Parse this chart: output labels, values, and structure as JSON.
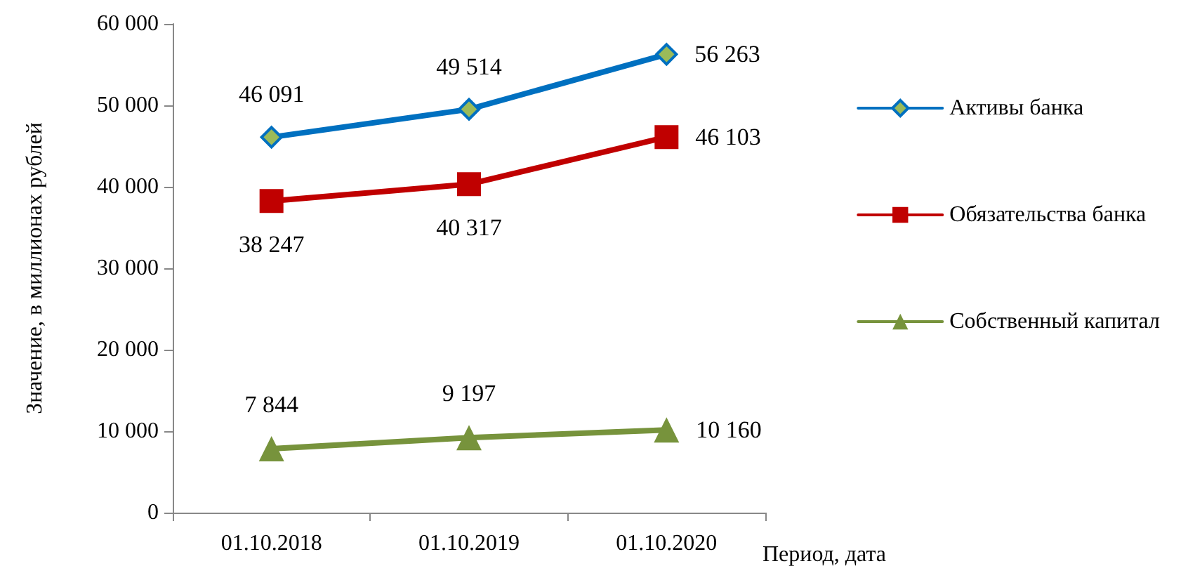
{
  "chart_data": {
    "type": "line",
    "xlabel": "Период, дата",
    "ylabel": "Значение, в миллионах рублей",
    "categories": [
      "01.10.2018",
      "01.10.2019",
      "01.10.2020"
    ],
    "series": [
      {
        "name": "Активы банка",
        "color": "#0070c0",
        "marker": "diamond",
        "values": [
          46091,
          49514,
          56263
        ],
        "value_labels": [
          "46 091",
          "49 514",
          "56 263"
        ]
      },
      {
        "name": "Обязательства банка",
        "color": "#c00000",
        "marker": "square",
        "values": [
          38247,
          40317,
          46103
        ],
        "value_labels": [
          "38 247",
          "40 317",
          "46 103"
        ]
      },
      {
        "name": "Собственный капитал",
        "color": "#77933c",
        "marker": "triangle",
        "values": [
          7844,
          9197,
          10160
        ],
        "value_labels": [
          "7 844",
          "9 197",
          "10 160"
        ]
      }
    ],
    "ylim": [
      0,
      60000
    ],
    "yticks": [
      0,
      {
        "value": 10000,
        "label": "10 000"
      },
      {
        "value": 20000,
        "label": "20 000"
      },
      {
        "value": 30000,
        "label": "30 000"
      },
      {
        "value": 40000,
        "label": "40 000"
      },
      {
        "value": 50000,
        "label": "50 000"
      },
      {
        "value": 60000,
        "label": "60 000"
      }
    ],
    "grid": false,
    "legend": "right",
    "line_style": "solid"
  }
}
